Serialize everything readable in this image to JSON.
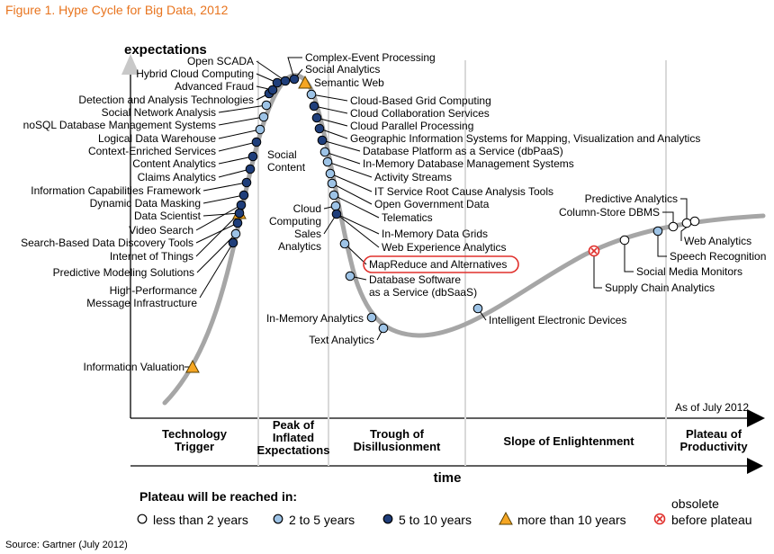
{
  "page": {
    "figure_title": "Figure 1. Hype Cycle for Big Data, 2012",
    "source": "Source: Gartner (July 2012)"
  },
  "chart_data": {
    "type": "line",
    "title": "Figure 1. Hype Cycle for Big Data, 2012",
    "ylabel": "expectations",
    "xlabel": "time",
    "as_of": "As of July 2012",
    "grid": false,
    "curve_color": "#a6a6a6",
    "colors": {
      "lt2": "#ffffff",
      "2to5": "#9dc3e6",
      "5to10": "#1f3e7a",
      "gt10": "#f5a623",
      "obsolete": "#e0302c",
      "highlight": "#e0302c"
    },
    "phases": [
      {
        "name": "Technology Trigger",
        "lines": [
          "Technology",
          "Trigger"
        ]
      },
      {
        "name": "Peak of Inflated Expectations",
        "lines": [
          "Peak of",
          "Inflated",
          "Expectations"
        ]
      },
      {
        "name": "Trough of Disillusionment",
        "lines": [
          "Trough of",
          "Disillusionment"
        ]
      },
      {
        "name": "Slope of Enlightenment",
        "lines": [
          "Slope of Enlightenment"
        ]
      },
      {
        "name": "Plateau of Productivity",
        "lines": [
          "Plateau of",
          "Productivity"
        ]
      }
    ],
    "legend": {
      "title": "Plateau will be reached in:",
      "items": [
        {
          "key": "lt2",
          "label": "less than 2 years"
        },
        {
          "key": "2to5",
          "label": "2 to 5 years"
        },
        {
          "key": "5to10",
          "label": "5 to 10 years"
        },
        {
          "key": "gt10",
          "label": "more than 10 years"
        },
        {
          "key": "obsolete",
          "label": "obsolete",
          "label2": "before plateau"
        }
      ]
    },
    "technologies": [
      {
        "name": "Information Valuation",
        "plateau": "gt10",
        "phase": "Technology Trigger"
      },
      {
        "name": "High-Performance Message Infrastructure",
        "lines": [
          "High-Performance",
          "Message Infrastructure"
        ],
        "plateau": "5to10",
        "phase": "Technology Trigger"
      },
      {
        "name": "Predictive Modeling Solutions",
        "plateau": "2to5",
        "phase": "Technology Trigger"
      },
      {
        "name": "Internet of Things",
        "plateau": "gt10",
        "phase": "Technology Trigger"
      },
      {
        "name": "Search-Based Data Discovery Tools",
        "plateau": "5to10",
        "phase": "Technology Trigger"
      },
      {
        "name": "Video Search",
        "plateau": "5to10",
        "phase": "Technology Trigger"
      },
      {
        "name": "Data Scientist",
        "plateau": "5to10",
        "phase": "Technology Trigger"
      },
      {
        "name": "Dynamic Data Masking",
        "plateau": "5to10",
        "phase": "Technology Trigger"
      },
      {
        "name": "Information Capabilities Framework",
        "plateau": "5to10",
        "phase": "Technology Trigger"
      },
      {
        "name": "Claims Analytics",
        "plateau": "5to10",
        "phase": "Technology Trigger"
      },
      {
        "name": "Content Analytics",
        "plateau": "5to10",
        "phase": "Technology Trigger"
      },
      {
        "name": "Context-Enriched Services",
        "plateau": "5to10",
        "phase": "Technology Trigger"
      },
      {
        "name": "Logical Data Warehouse",
        "plateau": "2to5",
        "phase": "Technology Trigger"
      },
      {
        "name": "noSQL Database Management Systems",
        "plateau": "2to5",
        "phase": "Technology Trigger"
      },
      {
        "name": "Social Network Analysis",
        "plateau": "2to5",
        "phase": "Technology Trigger"
      },
      {
        "name": "Detection and Analysis Technologies",
        "plateau": "5to10",
        "phase": "Technology Trigger"
      },
      {
        "name": "Advanced Fraud",
        "plateau": "5to10",
        "phase": "Technology Trigger"
      },
      {
        "name": "Hybrid Cloud Computing",
        "plateau": "5to10",
        "phase": "Technology Trigger"
      },
      {
        "name": "Open SCADA",
        "plateau": "5to10",
        "phase": "Technology Trigger"
      },
      {
        "name": "Social Content",
        "lines": [
          "Social",
          "Content"
        ],
        "plateau": "2to5",
        "phase": "Technology Trigger"
      },
      {
        "name": "Complex-Event Processing",
        "plateau": "5to10",
        "phase": "Peak of Inflated Expectations"
      },
      {
        "name": "Social Analytics",
        "plateau": "2to5",
        "phase": "Peak of Inflated Expectations"
      },
      {
        "name": "Semantic Web",
        "plateau": "gt10",
        "phase": "Peak of Inflated Expectations"
      },
      {
        "name": "Cloud-Based Grid Computing",
        "plateau": "2to5",
        "phase": "Peak of Inflated Expectations"
      },
      {
        "name": "Cloud Collaboration Services",
        "plateau": "5to10",
        "phase": "Peak of Inflated Expectations"
      },
      {
        "name": "Cloud Parallel Processing",
        "plateau": "5to10",
        "phase": "Peak of Inflated Expectations"
      },
      {
        "name": "Geographic Information Systems for Mapping, Visualization and Analytics",
        "plateau": "5to10",
        "phase": "Peak of Inflated Expectations"
      },
      {
        "name": "Database Platform as a Service (dbPaaS)",
        "plateau": "5to10",
        "phase": "Peak of Inflated Expectations"
      },
      {
        "name": "In-Memory Database Management Systems",
        "plateau": "2to5",
        "phase": "Peak of Inflated Expectations"
      },
      {
        "name": "Activity Streams",
        "plateau": "2to5",
        "phase": "Peak of Inflated Expectations"
      },
      {
        "name": "IT Service Root Cause Analysis Tools",
        "plateau": "2to5",
        "phase": "Peak of Inflated Expectations"
      },
      {
        "name": "Open Government Data",
        "plateau": "2to5",
        "phase": "Peak of Inflated Expectations"
      },
      {
        "name": "Telematics",
        "plateau": "2to5",
        "phase": "Peak of Inflated Expectations"
      },
      {
        "name": "Cloud Computing",
        "lines": [
          "Cloud",
          "Computing"
        ],
        "plateau": "2to5",
        "phase": "Peak of Inflated Expectations"
      },
      {
        "name": "Sales Analytics",
        "lines": [
          "Sales",
          "Analytics"
        ],
        "plateau": "5to10",
        "phase": "Peak of Inflated Expectations"
      },
      {
        "name": "In-Memory Data Grids",
        "plateau": "5to10",
        "phase": "Peak of Inflated Expectations"
      },
      {
        "name": "Web Experience Analytics",
        "plateau": "5to10",
        "phase": "Peak of Inflated Expectations"
      },
      {
        "name": "MapReduce and Alternatives",
        "plateau": "2to5",
        "phase": "Trough of Disillusionment",
        "highlight": true
      },
      {
        "name": "Database Software as a Service (dbSaaS)",
        "lines": [
          "Database Software",
          "as a Service (dbSaaS)"
        ],
        "plateau": "2to5",
        "phase": "Trough of Disillusionment"
      },
      {
        "name": "In-Memory Analytics",
        "plateau": "2to5",
        "phase": "Trough of Disillusionment"
      },
      {
        "name": "Text Analytics",
        "plateau": "2to5",
        "phase": "Trough of Disillusionment"
      },
      {
        "name": "Intelligent Electronic Devices",
        "plateau": "2to5",
        "phase": "Slope of Enlightenment"
      },
      {
        "name": "Supply Chain Analytics",
        "plateau": "obsolete",
        "phase": "Slope of Enlightenment"
      },
      {
        "name": "Social Media Monitors",
        "plateau": "lt2",
        "phase": "Slope of Enlightenment"
      },
      {
        "name": "Speech Recognition",
        "plateau": "2to5",
        "phase": "Slope of Enlightenment"
      },
      {
        "name": "Column-Store DBMS",
        "plateau": "lt2",
        "phase": "Slope of Enlightenment"
      },
      {
        "name": "Predictive Analytics",
        "plateau": "lt2",
        "phase": "Slope of Enlightenment"
      },
      {
        "name": "Web Analytics",
        "plateau": "lt2",
        "phase": "Slope of Enlightenment"
      }
    ]
  }
}
